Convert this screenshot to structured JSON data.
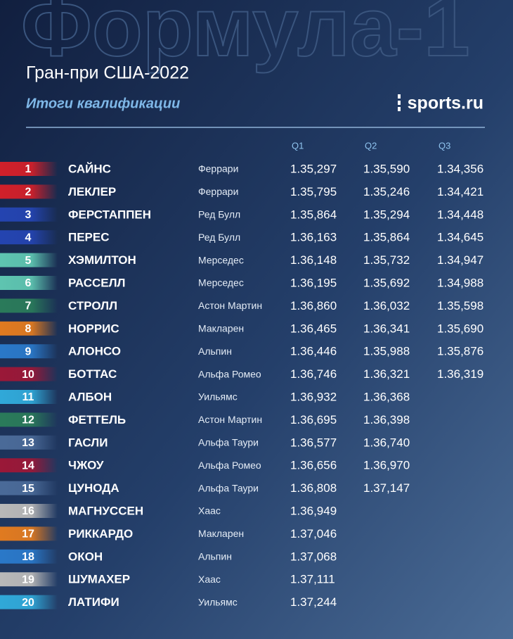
{
  "watermark": "Формула-1",
  "header": {
    "title": "Гран-при США-2022",
    "subtitle": "Итоги квалификации",
    "logo": "sports.ru"
  },
  "table": {
    "columns": [
      "Q1",
      "Q2",
      "Q3"
    ],
    "rows": [
      {
        "pos": "1",
        "driver": "САЙНС",
        "team": "Феррари",
        "color": "#d0202a",
        "times": [
          "1.35,297",
          "1.35,590",
          "1.34,356"
        ]
      },
      {
        "pos": "2",
        "driver": "ЛЕКЛЕР",
        "team": "Феррари",
        "color": "#d0202a",
        "times": [
          "1.35,795",
          "1.35,246",
          "1.34,421"
        ]
      },
      {
        "pos": "3",
        "driver": "ФЕРСТАППЕН",
        "team": "Ред Булл",
        "color": "#2444b0",
        "times": [
          "1.35,864",
          "1.35,294",
          "1.34,448"
        ]
      },
      {
        "pos": "4",
        "driver": "ПЕРЕС",
        "team": "Ред Булл",
        "color": "#2444b0",
        "times": [
          "1.36,163",
          "1.35,864",
          "1.34,645"
        ]
      },
      {
        "pos": "5",
        "driver": "ХЭМИЛТОН",
        "team": "Мерседес",
        "color": "#5ec4b0",
        "times": [
          "1.36,148",
          "1.35,732",
          "1.34,947"
        ]
      },
      {
        "pos": "6",
        "driver": "РАССЕЛЛ",
        "team": "Мерседес",
        "color": "#5ec4b0",
        "times": [
          "1.36,195",
          "1.35,692",
          "1.34,988"
        ]
      },
      {
        "pos": "7",
        "driver": "СТРОЛЛ",
        "team": "Астон Мартин",
        "color": "#2a7a5a",
        "times": [
          "1.36,860",
          "1.36,032",
          "1.35,598"
        ]
      },
      {
        "pos": "8",
        "driver": "НОРРИС",
        "team": "Макларен",
        "color": "#e07a20",
        "times": [
          "1.36,465",
          "1.36,341",
          "1.35,690"
        ]
      },
      {
        "pos": "9",
        "driver": "АЛОНСО",
        "team": "Альпин",
        "color": "#2a78c8",
        "times": [
          "1.36,446",
          "1.35,988",
          "1.35,876"
        ]
      },
      {
        "pos": "10",
        "driver": "БОТТАС",
        "team": "Альфа Ромео",
        "color": "#9a1838",
        "times": [
          "1.36,746",
          "1.36,321",
          "1.36,319"
        ]
      },
      {
        "pos": "11",
        "driver": "АЛБОН",
        "team": "Уильямс",
        "color": "#30a8d8",
        "times": [
          "1.36,932",
          "1.36,368"
        ]
      },
      {
        "pos": "12",
        "driver": "ФЕТТЕЛЬ",
        "team": "Астон Мартин",
        "color": "#2a7a5a",
        "times": [
          "1.36,695",
          "1.36,398"
        ]
      },
      {
        "pos": "13",
        "driver": "ГАСЛИ",
        "team": "Альфа Таури",
        "color": "#4a6a98",
        "times": [
          "1.36,577",
          "1.36,740"
        ]
      },
      {
        "pos": "14",
        "driver": "ЧЖОУ",
        "team": "Альфа Ромео",
        "color": "#9a1838",
        "times": [
          "1.36,656",
          "1.36,970"
        ]
      },
      {
        "pos": "15",
        "driver": "ЦУНОДА",
        "team": "Альфа Таури",
        "color": "#4a6a98",
        "times": [
          "1.36,808",
          "1.37,147"
        ]
      },
      {
        "pos": "16",
        "driver": "МАГНУССЕН",
        "team": "Хаас",
        "color": "#b8b8b8",
        "times": [
          "1.36,949"
        ]
      },
      {
        "pos": "17",
        "driver": "РИККАРДО",
        "team": "Макларен",
        "color": "#e07a20",
        "times": [
          "1.37,046"
        ]
      },
      {
        "pos": "18",
        "driver": "ОКОН",
        "team": "Альпин",
        "color": "#2a78c8",
        "times": [
          "1.37,068"
        ]
      },
      {
        "pos": "19",
        "driver": "ШУМАХЕР",
        "team": "Хаас",
        "color": "#b8b8b8",
        "times": [
          "1.37,111"
        ]
      },
      {
        "pos": "20",
        "driver": "ЛАТИФИ",
        "team": "Уильямс",
        "color": "#30a8d8",
        "times": [
          "1.37,244"
        ]
      }
    ]
  }
}
